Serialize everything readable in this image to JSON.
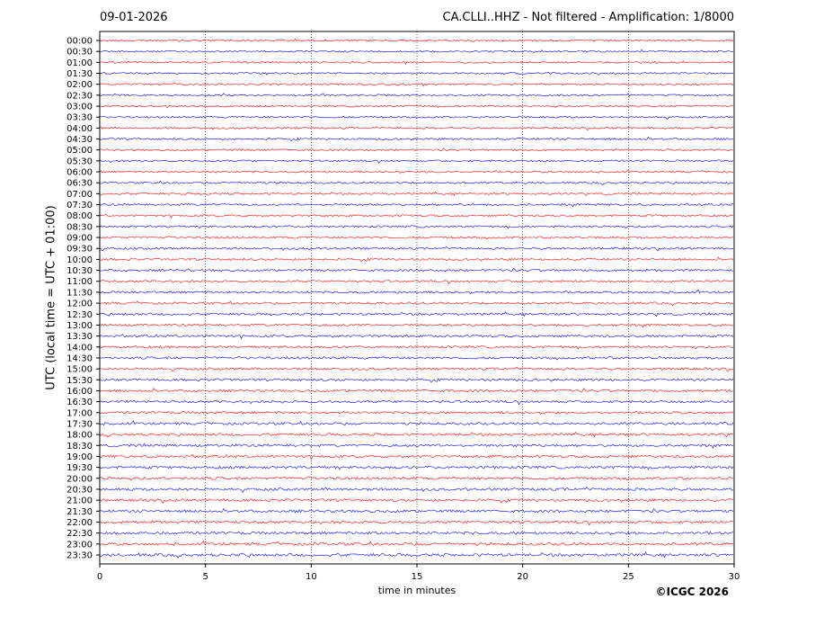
{
  "header": {
    "date": "09-01-2026",
    "title": "CA.CLLI..HHZ - Not filtered - Amplification: 1/8000"
  },
  "footer": {
    "copyright": "©ICGC 2026"
  },
  "chart_data": {
    "type": "line",
    "title": "CA.CLLI..HHZ - Not filtered - Amplification: 1/8000",
    "xlabel": "time in minutes",
    "ylabel": "UTC (local time = UTC + 01:00)",
    "xlim": [
      0,
      30
    ],
    "x_ticks": [
      "0",
      "5",
      "10",
      "15",
      "20",
      "25",
      "30"
    ],
    "y_tick_labels": [
      "00:00",
      "00:30",
      "01:00",
      "01:30",
      "02:00",
      "02:30",
      "03:00",
      "03:30",
      "04:00",
      "04:30",
      "05:00",
      "05:30",
      "06:00",
      "06:30",
      "07:00",
      "07:30",
      "08:00",
      "08:30",
      "09:00",
      "09:30",
      "10:00",
      "10:30",
      "11:00",
      "11:30",
      "12:00",
      "12:30",
      "13:00",
      "13:30",
      "14:00",
      "14:30",
      "15:00",
      "15:30",
      "16:00",
      "16:30",
      "17:00",
      "17:30",
      "18:00",
      "18:30",
      "19:00",
      "19:30",
      "20:00",
      "20:30",
      "21:00",
      "21:30",
      "22:00",
      "22:30",
      "23:00",
      "23:30"
    ],
    "trace_colors": [
      "#ff0000",
      "#0000ff"
    ],
    "grid": "vertical dotted at each x tick",
    "legend": "none"
  }
}
